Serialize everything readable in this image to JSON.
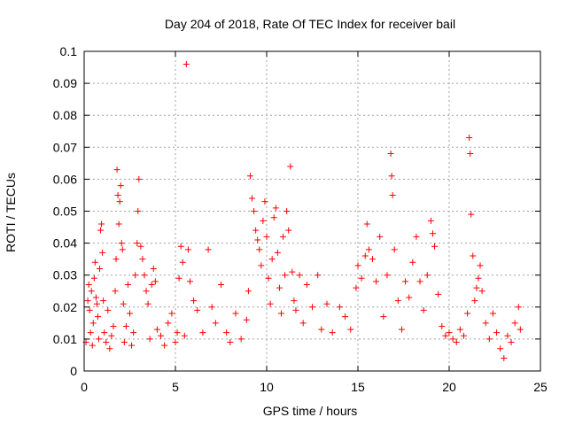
{
  "chart_data": {
    "type": "scatter",
    "title": "Day 204 of 2018, Rate Of TEC Index for receiver bail",
    "xlabel": "GPS time / hours",
    "ylabel": "ROTI / TECUs",
    "xlim": [
      0,
      25
    ],
    "ylim": [
      0,
      0.1
    ],
    "x_ticks": [
      0,
      5,
      10,
      15,
      20,
      25
    ],
    "y_ticks": [
      0,
      0.01,
      0.02,
      0.03,
      0.04,
      0.05,
      0.06,
      0.07,
      0.08,
      0.09,
      0.1
    ],
    "x_tick_labels": [
      "0",
      "5",
      "10",
      "15",
      "20",
      "25"
    ],
    "y_tick_labels": [
      "0",
      "0.01",
      "0.02",
      "0.03",
      "0.04",
      "0.05",
      "0.06",
      "0.07",
      "0.08",
      "0.09",
      "0.1"
    ],
    "grid": true,
    "marker": "+",
    "color": "#ff0000",
    "series": [
      {
        "name": "ROTI",
        "points": [
          [
            0.1,
            0.009
          ],
          [
            0.2,
            0.022
          ],
          [
            0.25,
            0.027
          ],
          [
            0.3,
            0.019
          ],
          [
            0.35,
            0.012
          ],
          [
            0.4,
            0.025
          ],
          [
            0.45,
            0.008
          ],
          [
            0.5,
            0.015
          ],
          [
            0.55,
            0.029
          ],
          [
            0.6,
            0.034
          ],
          [
            0.65,
            0.023
          ],
          [
            0.7,
            0.021
          ],
          [
            0.75,
            0.017
          ],
          [
            0.8,
            0.01
          ],
          [
            0.85,
            0.032
          ],
          [
            0.9,
            0.044
          ],
          [
            0.95,
            0.046
          ],
          [
            1.0,
            0.037
          ],
          [
            1.05,
            0.022
          ],
          [
            1.1,
            0.012
          ],
          [
            1.2,
            0.009
          ],
          [
            1.3,
            0.019
          ],
          [
            1.4,
            0.007
          ],
          [
            1.5,
            0.011
          ],
          [
            1.6,
            0.014
          ],
          [
            1.7,
            0.025
          ],
          [
            1.75,
            0.035
          ],
          [
            1.8,
            0.063
          ],
          [
            1.85,
            0.055
          ],
          [
            1.9,
            0.046
          ],
          [
            1.95,
            0.053
          ],
          [
            2.0,
            0.058
          ],
          [
            2.05,
            0.04
          ],
          [
            2.1,
            0.038
          ],
          [
            2.15,
            0.021
          ],
          [
            2.2,
            0.009
          ],
          [
            2.3,
            0.014
          ],
          [
            2.4,
            0.027
          ],
          [
            2.5,
            0.018
          ],
          [
            2.6,
            0.008
          ],
          [
            2.7,
            0.012
          ],
          [
            2.8,
            0.03
          ],
          [
            2.9,
            0.04
          ],
          [
            2.95,
            0.05
          ],
          [
            3.0,
            0.06
          ],
          [
            3.1,
            0.039
          ],
          [
            3.2,
            0.035
          ],
          [
            3.3,
            0.03
          ],
          [
            3.4,
            0.025
          ],
          [
            3.5,
            0.021
          ],
          [
            3.6,
            0.01
          ],
          [
            3.7,
            0.027
          ],
          [
            3.8,
            0.032
          ],
          [
            3.9,
            0.028
          ],
          [
            4.0,
            0.013
          ],
          [
            4.2,
            0.011
          ],
          [
            4.4,
            0.008
          ],
          [
            4.6,
            0.015
          ],
          [
            4.8,
            0.018
          ],
          [
            5.0,
            0.009
          ],
          [
            5.1,
            0.012
          ],
          [
            5.2,
            0.029
          ],
          [
            5.3,
            0.039
          ],
          [
            5.4,
            0.034
          ],
          [
            5.5,
            0.011
          ],
          [
            5.6,
            0.096
          ],
          [
            5.7,
            0.038
          ],
          [
            5.8,
            0.028
          ],
          [
            6.0,
            0.022
          ],
          [
            6.2,
            0.019
          ],
          [
            6.5,
            0.012
          ],
          [
            6.8,
            0.038
          ],
          [
            7.0,
            0.02
          ],
          [
            7.2,
            0.015
          ],
          [
            7.5,
            0.027
          ],
          [
            7.8,
            0.012
          ],
          [
            8.0,
            0.009
          ],
          [
            8.3,
            0.018
          ],
          [
            8.6,
            0.01
          ],
          [
            8.9,
            0.016
          ],
          [
            9.0,
            0.025
          ],
          [
            9.1,
            0.061
          ],
          [
            9.2,
            0.054
          ],
          [
            9.3,
            0.05
          ],
          [
            9.4,
            0.044
          ],
          [
            9.5,
            0.041
          ],
          [
            9.6,
            0.038
          ],
          [
            9.7,
            0.033
          ],
          [
            9.8,
            0.047
          ],
          [
            9.9,
            0.053
          ],
          [
            10.0,
            0.042
          ],
          [
            10.1,
            0.029
          ],
          [
            10.2,
            0.021
          ],
          [
            10.3,
            0.035
          ],
          [
            10.4,
            0.048
          ],
          [
            10.5,
            0.051
          ],
          [
            10.6,
            0.037
          ],
          [
            10.7,
            0.026
          ],
          [
            10.8,
            0.018
          ],
          [
            10.9,
            0.042
          ],
          [
            11.0,
            0.03
          ],
          [
            11.1,
            0.05
          ],
          [
            11.2,
            0.044
          ],
          [
            11.3,
            0.064
          ],
          [
            11.4,
            0.031
          ],
          [
            11.5,
            0.022
          ],
          [
            11.6,
            0.019
          ],
          [
            11.8,
            0.03
          ],
          [
            12.0,
            0.015
          ],
          [
            12.2,
            0.027
          ],
          [
            12.5,
            0.02
          ],
          [
            12.8,
            0.03
          ],
          [
            13.0,
            0.013
          ],
          [
            13.3,
            0.021
          ],
          [
            13.6,
            0.012
          ],
          [
            14.0,
            0.02
          ],
          [
            14.3,
            0.017
          ],
          [
            14.6,
            0.013
          ],
          [
            14.9,
            0.026
          ],
          [
            15.0,
            0.033
          ],
          [
            15.2,
            0.029
          ],
          [
            15.4,
            0.036
          ],
          [
            15.5,
            0.046
          ],
          [
            15.6,
            0.038
          ],
          [
            15.8,
            0.035
          ],
          [
            16.0,
            0.028
          ],
          [
            16.2,
            0.042
          ],
          [
            16.4,
            0.017
          ],
          [
            16.6,
            0.03
          ],
          [
            16.8,
            0.068
          ],
          [
            16.85,
            0.061
          ],
          [
            16.9,
            0.055
          ],
          [
            17.0,
            0.038
          ],
          [
            17.2,
            0.022
          ],
          [
            17.4,
            0.013
          ],
          [
            17.6,
            0.028
          ],
          [
            17.8,
            0.023
          ],
          [
            18.0,
            0.034
          ],
          [
            18.2,
            0.042
          ],
          [
            18.4,
            0.028
          ],
          [
            18.6,
            0.019
          ],
          [
            18.8,
            0.03
          ],
          [
            19.0,
            0.047
          ],
          [
            19.1,
            0.043
          ],
          [
            19.2,
            0.039
          ],
          [
            19.4,
            0.024
          ],
          [
            19.6,
            0.014
          ],
          [
            19.8,
            0.011
          ],
          [
            20.0,
            0.012
          ],
          [
            20.2,
            0.01
          ],
          [
            20.4,
            0.009
          ],
          [
            20.6,
            0.013
          ],
          [
            20.8,
            0.011
          ],
          [
            21.0,
            0.018
          ],
          [
            21.1,
            0.073
          ],
          [
            21.15,
            0.068
          ],
          [
            21.2,
            0.049
          ],
          [
            21.3,
            0.036
          ],
          [
            21.4,
            0.022
          ],
          [
            21.5,
            0.026
          ],
          [
            21.6,
            0.029
          ],
          [
            21.7,
            0.033
          ],
          [
            21.8,
            0.025
          ],
          [
            22.0,
            0.015
          ],
          [
            22.2,
            0.01
          ],
          [
            22.4,
            0.018
          ],
          [
            22.6,
            0.012
          ],
          [
            22.8,
            0.007
          ],
          [
            23.0,
            0.004
          ],
          [
            23.2,
            0.011
          ],
          [
            23.4,
            0.009
          ],
          [
            23.6,
            0.015
          ],
          [
            23.8,
            0.02
          ],
          [
            23.9,
            0.013
          ]
        ]
      }
    ]
  }
}
